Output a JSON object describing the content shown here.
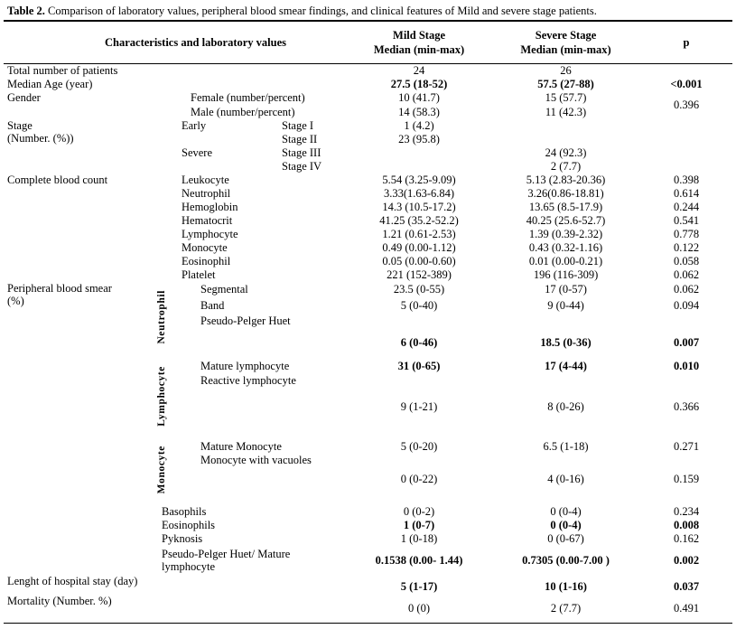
{
  "title": {
    "label": "Table 2.",
    "text": "Comparison of laboratory values, peripheral blood smear findings, and clinical features of  Mild and severe stage patients."
  },
  "header": {
    "characteristics": "Characteristics and laboratory values",
    "mild_line1": "Mild Stage",
    "mild_line2": "Median (min-max)",
    "severe_line1": "Severe Stage",
    "severe_line2": "Median (min-max)",
    "p": "p"
  },
  "rows": {
    "total": {
      "label": "Total number of patients",
      "mild": "24",
      "severe": "26"
    },
    "age": {
      "label": "Median Age (year)",
      "mild": "27.5 (18-52)",
      "severe": "57.5 (27-88)",
      "p": "<0.001"
    },
    "gender": {
      "label": "Gender",
      "female": {
        "sub": "Female (number/percent)",
        "mild": "10 (41.7)",
        "severe": "15 (57.7)"
      },
      "male": {
        "sub": "Male (number/percent)",
        "mild": "14 (58.3)",
        "severe": "11 (42.3)"
      },
      "p": "0.396"
    },
    "stage": {
      "label_line1": "Stage",
      "label_line2": "(Number. (%))",
      "early_label": "Early",
      "severe_label": "Severe",
      "stage1": {
        "sub": "Stage I",
        "mild": "1 (4.2)"
      },
      "stage2": {
        "sub": "Stage II",
        "mild": "23 (95.8)"
      },
      "stage3": {
        "sub": "Stage III",
        "severe": "24 (92.3)"
      },
      "stage4": {
        "sub": "Stage IV",
        "severe": "2 (7.7)"
      }
    },
    "cbc": {
      "label": "Complete blood count",
      "items": [
        {
          "sub": "Leukocyte",
          "mild": "5.54 (3.25-9.09)",
          "severe": "5.13 (2.83-20.36)",
          "p": "0.398"
        },
        {
          "sub": "Neutrophil",
          "mild": "3.33(1.63-6.84)",
          "severe": "3.26(0.86-18.81)",
          "p": "0.614"
        },
        {
          "sub": "Hemoglobin",
          "mild": "14.3 (10.5-17.2)",
          "severe": "13.65 (8.5-17.9)",
          "p": "0.244"
        },
        {
          "sub": "Hematocrit",
          "mild": "41.25 (35.2-52.2)",
          "severe": "40.25 (25.6-52.7)",
          "p": "0.541"
        },
        {
          "sub": "Lymphocyte",
          "mild": "1.21 (0.61-2.53)",
          "severe": "1.39 (0.39-2.32)",
          "p": "0.778"
        },
        {
          "sub": "Monocyte",
          "mild": "0.49 (0.00-1.12)",
          "severe": "0.43 (0.32-1.16)",
          "p": "0.122"
        },
        {
          "sub": "Eosinophil",
          "mild": "0.05 (0.00-0.60)",
          "severe": "0.01 (0.00-0.21)",
          "p": "0.058"
        },
        {
          "sub": "Platelet",
          "mild": "221 (152-389)",
          "severe": "196 (116-309)",
          "p": "0.062"
        }
      ]
    },
    "smear": {
      "label_line1": "Peripheral blood smear",
      "label_line2": "(%)",
      "groups": {
        "neutrophil": "Neutrophil",
        "lymphocyte": "Lymphocyte",
        "monocyte": "Monocyte"
      },
      "segmental": {
        "sub": "Segmental",
        "mild": "23.5 (0-55)",
        "severe": "17 (0-57)",
        "p": "0.062"
      },
      "band": {
        "sub": "Band",
        "mild": "5 (0-40)",
        "severe": "9 (0-44)",
        "p": "0.094"
      },
      "pseudo_pelger_huet": {
        "sub": "Pseudo-Pelger Huet",
        "mild": "6 (0-46)",
        "severe": "18.5 (0-36)",
        "p": "0.007"
      },
      "mature_lymphocyte": {
        "sub": "Mature lymphocyte",
        "mild": "31 (0-65)",
        "severe": "17 (4-44)",
        "p": "0.010"
      },
      "reactive_lymphocyte": {
        "sub": "Reactive  lymphocyte",
        "mild": "9 (1-21)",
        "severe": "8 (0-26)",
        "p": "0.366"
      },
      "mature_monocyte": {
        "sub": "Mature Monocyte",
        "mild": "5 (0-20)",
        "severe": "6.5 (1-18)",
        "p": "0.271"
      },
      "monocyte_vacuoles": {
        "sub": "Monocyte with vacuoles",
        "mild": "0 (0-22)",
        "severe": "4 (0-16)",
        "p": "0.159"
      },
      "basophils": {
        "sub": "Basophils",
        "mild": "0 (0-2)",
        "severe": "0 (0-4)",
        "p": "0.234"
      },
      "eosinophils": {
        "sub": "Eosinophils",
        "mild": "1 (0-7)",
        "severe": "0 (0-4)",
        "p": "0.008"
      },
      "pyknosis": {
        "sub": "Pyknosis",
        "mild": "1 (0-18)",
        "severe": "0 (0-67)",
        "p": "0.162"
      },
      "pph_mature_ratio": {
        "sub_line1": "Pseudo-Pelger Huet/ Mature",
        "sub_line2": "lymphocyte",
        "mild": "0.1538 (0.00- 1.44)",
        "severe": "0.7305 (0.00-7.00 )",
        "p": "0.002"
      }
    },
    "hospital_stay": {
      "label": "Lenght of hospital stay (day)",
      "mild": "5 (1-17)",
      "severe": "10 (1-16)",
      "p": "0.037"
    },
    "mortality": {
      "label": "Mortality (Number. %)",
      "mild": "0 (0)",
      "severe": "2 (7.7)",
      "p": "0.491"
    }
  }
}
